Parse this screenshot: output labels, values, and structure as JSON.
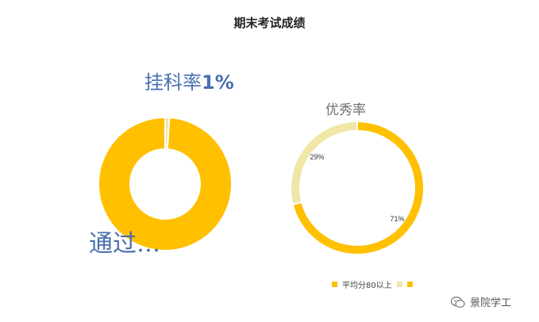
{
  "chart_data": [
    {
      "type": "donut",
      "title": "",
      "annotations": {
        "fail_prefix": "挂科率",
        "fail_value": "1%",
        "pass_text": "通过…"
      },
      "slices": [
        {
          "value": 99,
          "color": "#FFC000"
        },
        {
          "value": 1,
          "color": "#F0E6A6"
        }
      ]
    },
    {
      "type": "donut",
      "title": "优秀率",
      "slices": [
        {
          "value": 71,
          "label": "71%",
          "color": "#FFC000"
        },
        {
          "value": 29,
          "label": "29%",
          "color": "#F0E6A6"
        }
      ],
      "legend": [
        {
          "label": "平均分80以上",
          "color": "#FFC000"
        },
        {
          "label": "",
          "color": "#F0E6A6"
        },
        {
          "label": "",
          "color": "#FFC000"
        }
      ]
    }
  ],
  "header": {
    "title": "期末考试成绩"
  },
  "watermark": {
    "text": "景院学工",
    "icon": "wechat-icon"
  }
}
